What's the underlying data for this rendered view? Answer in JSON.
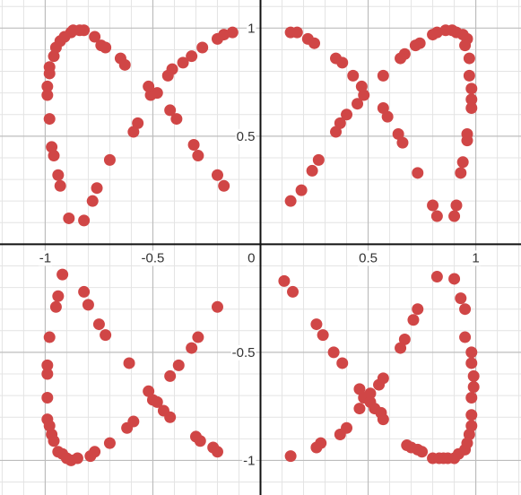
{
  "chart_data": {
    "type": "scatter",
    "title": "",
    "xlabel": "",
    "ylabel": "",
    "xlim": [
      -1.21,
      1.21
    ],
    "ylim": [
      -1.16,
      1.13
    ],
    "grid": true,
    "x_ticks": [
      {
        "value": -1,
        "label": "-1"
      },
      {
        "value": -0.5,
        "label": "-0.5"
      },
      {
        "value": 0,
        "label": "0"
      },
      {
        "value": 0.5,
        "label": "0.5"
      },
      {
        "value": 1,
        "label": "1"
      }
    ],
    "y_ticks": [
      {
        "value": 1,
        "label": "1"
      },
      {
        "value": 0.5,
        "label": "0.5"
      },
      {
        "value": -0.5,
        "label": "-0.5"
      },
      {
        "value": -1,
        "label": "-1"
      }
    ],
    "colors": {
      "points": "#d04646",
      "axis": "#111111",
      "grid_major": "#bdbdbd",
      "grid_minor": "#e4e4e4"
    },
    "series": [
      {
        "points": [
          [
            0.14,
            0.98
          ],
          [
            0.17,
            0.98
          ],
          [
            0.22,
            0.95
          ],
          [
            0.25,
            0.93
          ],
          [
            0.35,
            0.86
          ],
          [
            0.38,
            0.84
          ],
          [
            0.43,
            0.78
          ],
          [
            0.47,
            0.73
          ],
          [
            0.48,
            0.69
          ],
          [
            0.45,
            0.65
          ],
          [
            0.4,
            0.6
          ],
          [
            0.37,
            0.56
          ],
          [
            0.35,
            0.52
          ],
          [
            0.27,
            0.39
          ],
          [
            0.24,
            0.34
          ],
          [
            0.19,
            0.25
          ],
          [
            0.14,
            0.2
          ],
          [
            0.96,
            0.95
          ],
          [
            0.95,
            0.92
          ],
          [
            0.94,
            0.97
          ],
          [
            0.91,
            0.98
          ],
          [
            0.89,
            0.99
          ],
          [
            0.86,
            0.99
          ],
          [
            0.82,
            0.98
          ],
          [
            0.8,
            0.97
          ],
          [
            0.74,
            0.93
          ],
          [
            0.72,
            0.92
          ],
          [
            0.67,
            0.88
          ],
          [
            0.65,
            0.86
          ],
          [
            0.57,
            0.78
          ],
          [
            0.57,
            0.63
          ],
          [
            0.59,
            0.59
          ],
          [
            0.64,
            0.51
          ],
          [
            0.66,
            0.47
          ],
          [
            0.73,
            0.33
          ],
          [
            0.8,
            0.18
          ],
          [
            0.82,
            0.13
          ],
          [
            0.9,
            0.13
          ],
          [
            0.91,
            0.18
          ],
          [
            0.93,
            0.33
          ],
          [
            0.94,
            0.38
          ],
          [
            0.96,
            0.48
          ],
          [
            0.96,
            0.51
          ],
          [
            0.98,
            0.63
          ],
          [
            0.98,
            0.67
          ],
          [
            0.98,
            0.72
          ],
          [
            0.97,
            0.78
          ],
          [
            0.97,
            0.86
          ],
          [
            -0.13,
            0.98
          ],
          [
            -0.17,
            0.97
          ],
          [
            -0.2,
            0.95
          ],
          [
            -0.27,
            0.91
          ],
          [
            -0.32,
            0.87
          ],
          [
            -0.36,
            0.84
          ],
          [
            -0.41,
            0.81
          ],
          [
            -0.43,
            0.78
          ],
          [
            -0.48,
            0.7
          ],
          [
            -0.51,
            0.69
          ],
          [
            -0.52,
            0.73
          ],
          [
            -0.42,
            0.62
          ],
          [
            -0.39,
            0.58
          ],
          [
            -0.31,
            0.46
          ],
          [
            -0.29,
            0.41
          ],
          [
            -0.2,
            0.32
          ],
          [
            -0.17,
            0.27
          ],
          [
            -0.57,
            0.56
          ],
          [
            -0.59,
            0.52
          ],
          [
            -0.63,
            0.83
          ],
          [
            -0.65,
            0.86
          ],
          [
            -0.72,
            0.91
          ],
          [
            -0.74,
            0.92
          ],
          [
            -0.77,
            0.96
          ],
          [
            -0.82,
            0.99
          ],
          [
            -0.84,
            0.99
          ],
          [
            -0.87,
            0.99
          ],
          [
            -0.88,
            0.98
          ],
          [
            -0.91,
            0.96
          ],
          [
            -0.93,
            0.94
          ],
          [
            -0.95,
            0.91
          ],
          [
            -0.96,
            0.87
          ],
          [
            -0.98,
            0.82
          ],
          [
            -0.98,
            0.79
          ],
          [
            -0.99,
            0.73
          ],
          [
            -0.99,
            0.69
          ],
          [
            -0.98,
            0.58
          ],
          [
            -0.97,
            0.45
          ],
          [
            -0.96,
            0.41
          ],
          [
            -0.94,
            0.32
          ],
          [
            -0.93,
            0.27
          ],
          [
            -0.89,
            0.12
          ],
          [
            -0.82,
            0.11
          ],
          [
            -0.78,
            0.2
          ],
          [
            -0.76,
            0.26
          ],
          [
            -0.7,
            0.39
          ],
          [
            -0.92,
            -0.14
          ],
          [
            -0.94,
            -0.24
          ],
          [
            -0.95,
            -0.29
          ],
          [
            -0.98,
            -0.43
          ],
          [
            -0.99,
            -0.56
          ],
          [
            -0.99,
            -0.6
          ],
          [
            -0.99,
            -0.71
          ],
          [
            -0.99,
            -0.81
          ],
          [
            -0.98,
            -0.84
          ],
          [
            -0.97,
            -0.88
          ],
          [
            -0.96,
            -0.91
          ],
          [
            -0.94,
            -0.96
          ],
          [
            -0.92,
            -0.97
          ],
          [
            -0.9,
            -0.99
          ],
          [
            -0.88,
            -1.0
          ],
          [
            -0.85,
            -0.99
          ],
          [
            -0.79,
            -0.98
          ],
          [
            -0.77,
            -0.96
          ],
          [
            -0.7,
            -0.92
          ],
          [
            -0.62,
            -0.85
          ],
          [
            -0.59,
            -0.82
          ],
          [
            -0.52,
            -0.68
          ],
          [
            -0.5,
            -0.72
          ],
          [
            -0.48,
            -0.73
          ],
          [
            -0.45,
            -0.77
          ],
          [
            -0.42,
            -0.8
          ],
          [
            -0.3,
            -0.89
          ],
          [
            -0.28,
            -0.91
          ],
          [
            -0.22,
            -0.94
          ],
          [
            -0.2,
            -0.96
          ],
          [
            -0.82,
            -0.22
          ],
          [
            -0.8,
            -0.28
          ],
          [
            -0.75,
            -0.37
          ],
          [
            -0.72,
            -0.42
          ],
          [
            -0.61,
            -0.55
          ],
          [
            -0.42,
            -0.61
          ],
          [
            -0.38,
            -0.56
          ],
          [
            -0.32,
            -0.48
          ],
          [
            -0.29,
            -0.43
          ],
          [
            -0.2,
            -0.29
          ],
          [
            0.11,
            -0.17
          ],
          [
            0.15,
            -0.22
          ],
          [
            0.26,
            -0.37
          ],
          [
            0.29,
            -0.42
          ],
          [
            0.34,
            -0.5
          ],
          [
            0.38,
            -0.55
          ],
          [
            0.46,
            -0.67
          ],
          [
            0.48,
            -0.71
          ],
          [
            0.51,
            -0.73
          ],
          [
            0.53,
            -0.76
          ],
          [
            0.56,
            -0.78
          ],
          [
            0.57,
            -0.81
          ],
          [
            0.68,
            -0.93
          ],
          [
            0.7,
            -0.94
          ],
          [
            0.73,
            -0.95
          ],
          [
            0.75,
            -0.96
          ],
          [
            0.8,
            -0.99
          ],
          [
            0.83,
            -0.99
          ],
          [
            0.85,
            -0.99
          ],
          [
            0.87,
            -0.99
          ],
          [
            0.9,
            -0.99
          ],
          [
            0.92,
            -0.97
          ],
          [
            0.95,
            -0.95
          ],
          [
            0.96,
            -0.92
          ],
          [
            0.97,
            -0.88
          ],
          [
            0.98,
            -0.84
          ],
          [
            0.98,
            -0.79
          ],
          [
            0.98,
            -0.71
          ],
          [
            0.99,
            -0.66
          ],
          [
            0.99,
            -0.61
          ],
          [
            0.98,
            -0.55
          ],
          [
            0.98,
            -0.5
          ],
          [
            0.95,
            -0.43
          ],
          [
            0.95,
            -0.3
          ],
          [
            0.93,
            -0.25
          ],
          [
            0.9,
            -0.16
          ],
          [
            0.82,
            -0.15
          ],
          [
            0.73,
            -0.3
          ],
          [
            0.71,
            -0.35
          ],
          [
            0.67,
            -0.44
          ],
          [
            0.65,
            -0.48
          ],
          [
            0.57,
            -0.62
          ],
          [
            0.55,
            -0.65
          ],
          [
            0.51,
            -0.69
          ],
          [
            0.46,
            -0.76
          ],
          [
            0.4,
            -0.85
          ],
          [
            0.37,
            -0.88
          ],
          [
            0.28,
            -0.92
          ],
          [
            0.26,
            -0.94
          ],
          [
            0.14,
            -0.98
          ]
        ]
      }
    ]
  }
}
